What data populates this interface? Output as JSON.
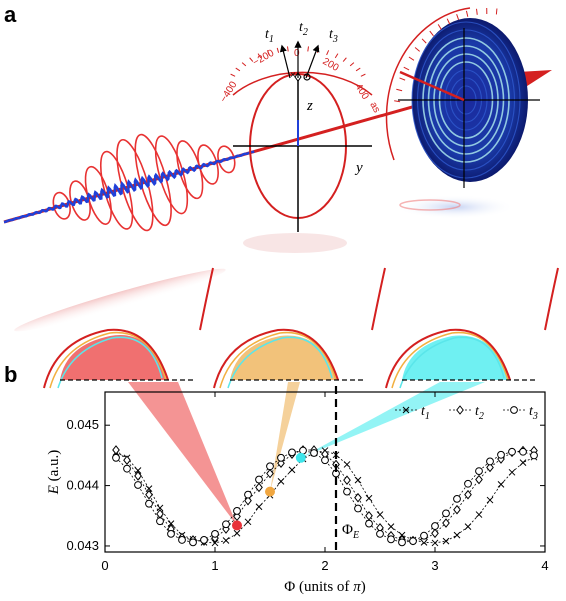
{
  "panels": {
    "a": "a",
    "b": "b"
  },
  "ellipse": {
    "time_ticks": [
      "−400",
      "−200",
      "0",
      "200",
      "400"
    ],
    "time_unit": "as",
    "axis_y": "y",
    "axis_z": "z",
    "arrows": [
      {
        "label": "t",
        "sub": "1"
      },
      {
        "label": "t",
        "sub": "2"
      },
      {
        "label": "t",
        "sub": "3"
      }
    ]
  },
  "phi_marker": {
    "label": "Φ",
    "sub": "E",
    "x": 2.1
  },
  "chart_data": {
    "type": "line",
    "xlabel_main": "Φ (units of ",
    "xlabel_pi": "π",
    "xlabel_close": ")",
    "ylabel_main": "E",
    "ylabel_unit": " (a.u.)",
    "xlim": [
      0,
      4
    ],
    "ylim": [
      0.0429,
      0.04555
    ],
    "xticks": [
      {
        "v": 0,
        "t": "0"
      },
      {
        "v": 1,
        "t": "1"
      },
      {
        "v": 2,
        "t": "2"
      },
      {
        "v": 3,
        "t": "3"
      },
      {
        "v": 4,
        "t": "4"
      }
    ],
    "yticks": [
      {
        "v": 0.043,
        "t": "0.043"
      },
      {
        "v": 0.044,
        "t": "0.044"
      },
      {
        "v": 0.045,
        "t": "0.045"
      }
    ],
    "legend_position": "top-right",
    "x": [
      0.1,
      0.2,
      0.3,
      0.4,
      0.5,
      0.6,
      0.7,
      0.8,
      0.9,
      1.0,
      1.1,
      1.2,
      1.3,
      1.4,
      1.5,
      1.6,
      1.7,
      1.8,
      1.9,
      2.0,
      2.1,
      2.2,
      2.3,
      2.4,
      2.5,
      2.6,
      2.7,
      2.8,
      2.9,
      3.0,
      3.1,
      3.2,
      3.3,
      3.4,
      3.5,
      3.6,
      3.7,
      3.8,
      3.9
    ],
    "series": [
      {
        "name": "t",
        "sub": "1",
        "marker": "x",
        "values": [
          0.04455,
          0.04446,
          0.04425,
          0.04395,
          0.04363,
          0.04337,
          0.04318,
          0.04311,
          0.04306,
          0.04305,
          0.04309,
          0.04321,
          0.0434,
          0.04365,
          0.04384,
          0.04407,
          0.04426,
          0.04444,
          0.04454,
          0.04458,
          0.04451,
          0.04435,
          0.04409,
          0.04379,
          0.04352,
          0.04332,
          0.04318,
          0.0431,
          0.04306,
          0.04305,
          0.04308,
          0.04318,
          0.04332,
          0.04352,
          0.04376,
          0.04402,
          0.04422,
          0.04438,
          0.04447
        ]
      },
      {
        "name": "t",
        "sub": "2",
        "marker": "diamond",
        "values": [
          0.04459,
          0.04442,
          0.04416,
          0.04385,
          0.04353,
          0.04328,
          0.04314,
          0.0431,
          0.04308,
          0.04313,
          0.04328,
          0.04349,
          0.04375,
          0.04397,
          0.0442,
          0.04437,
          0.04452,
          0.04459,
          0.04459,
          0.04452,
          0.04435,
          0.04409,
          0.0438,
          0.0435,
          0.0433,
          0.04317,
          0.0431,
          0.04309,
          0.04311,
          0.04321,
          0.04338,
          0.0436,
          0.04385,
          0.0441,
          0.0443,
          0.04444,
          0.04455,
          0.04458,
          0.04458
        ]
      },
      {
        "name": "t",
        "sub": "3",
        "marker": "circle",
        "values": [
          0.04446,
          0.04428,
          0.04401,
          0.0437,
          0.04341,
          0.0432,
          0.0431,
          0.04306,
          0.0431,
          0.0432,
          0.04336,
          0.04358,
          0.04385,
          0.0441,
          0.04432,
          0.04446,
          0.04455,
          0.04458,
          0.04454,
          0.04442,
          0.0442,
          0.0439,
          0.04362,
          0.04337,
          0.0432,
          0.04311,
          0.04306,
          0.04308,
          0.04317,
          0.04333,
          0.04354,
          0.04378,
          0.04403,
          0.04424,
          0.0444,
          0.04451,
          0.04456,
          0.04456,
          0.0445
        ]
      }
    ],
    "highlight_points": [
      {
        "x": 1.2,
        "y": 0.04334,
        "color": "#e8323a"
      },
      {
        "x": 1.5,
        "y": 0.0439,
        "color": "#f0a640"
      },
      {
        "x": 1.78,
        "y": 0.04446,
        "color": "#3ce4ea"
      }
    ]
  },
  "colors": {
    "red": "#d42020",
    "blue": "#2040d8",
    "pulse_red": "#e83232",
    "fill_red": "#f07070",
    "fill_orange": "#f2c27a",
    "fill_cyan": "#6ff0f2"
  }
}
